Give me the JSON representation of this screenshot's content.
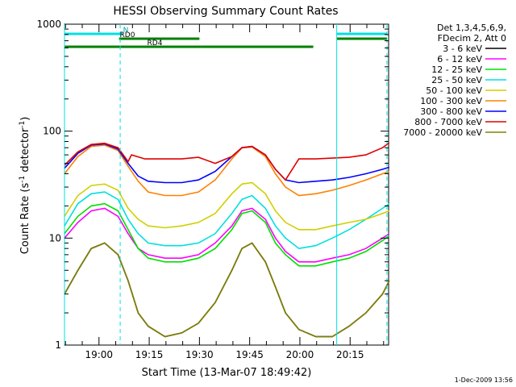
{
  "chart_data": {
    "type": "line",
    "title": "HESSI Observing Summary Count Rates",
    "xlabel": "Start Time (13-Mar-07 18:49:42)",
    "ylabel_main": "Count Rate (s",
    "ylabel_sup1": "-1",
    "ylabel_mid": " detector",
    "ylabel_sup2": "-1",
    "ylabel_end": ")",
    "y_scale": "log",
    "ylim": [
      1,
      1000
    ],
    "xlim": [
      "18:49:42",
      "20:26:30"
    ],
    "x_ticks": [
      "19:00",
      "19:15",
      "19:30",
      "19:45",
      "20:00",
      "20:15"
    ],
    "y_ticks": [
      "1",
      "10",
      "100",
      "1000"
    ],
    "legend": {
      "header": [
        "Det 1,3,4,5,6,9,",
        "FDecim 2, Att 0"
      ],
      "entries": [
        {
          "label": "3 - 6 keV",
          "color": "#000000"
        },
        {
          "label": "6 - 12 keV",
          "color": "#ff00ff"
        },
        {
          "label": "12 - 25 keV",
          "color": "#00e000"
        },
        {
          "label": "25 - 50 keV",
          "color": "#00e0e0"
        },
        {
          "label": "50 - 100 keV",
          "color": "#d0d000"
        },
        {
          "label": "100 - 300 keV",
          "color": "#ff8000"
        },
        {
          "label": "300 - 800 keV",
          "color": "#0000ff"
        },
        {
          "label": "800 - 7000 keV",
          "color": "#e00000"
        },
        {
          "label": "7000 - 20000 keV",
          "color": "#808000"
        }
      ]
    },
    "flags": [
      {
        "label": "N",
        "color": "#00e0e0",
        "intervals": [
          [
            "18:49:42",
            "19:07:00"
          ],
          [
            "20:11:00",
            "20:26:00"
          ]
        ]
      },
      {
        "label": "RD0",
        "color": "#008000",
        "intervals": [
          [
            "19:06:00",
            "19:30:00"
          ],
          [
            "20:11:00",
            "20:26:00"
          ]
        ]
      },
      {
        "label": "RD4",
        "color": "#008000",
        "intervals": [
          [
            "18:49:42",
            "19:30:30"
          ],
          [
            "19:30:30",
            "20:04:00"
          ]
        ]
      }
    ],
    "vertical_markers_dashed": [
      "19:06:20",
      "20:26:00"
    ],
    "vertical_markers_solid": [
      "18:49:42",
      "20:11:00"
    ],
    "series": [
      {
        "name": "3 - 6 keV",
        "color": "#000000",
        "points": [
          [
            0,
            3
          ],
          [
            4,
            5
          ],
          [
            8,
            8
          ],
          [
            12,
            9
          ],
          [
            16,
            7
          ],
          [
            19,
            4
          ],
          [
            22,
            2
          ],
          [
            25,
            1.5
          ],
          [
            30,
            1.2
          ],
          [
            35,
            1.3
          ],
          [
            40,
            1.6
          ],
          [
            45,
            2.5
          ],
          [
            50,
            5
          ],
          [
            53,
            8
          ],
          [
            56,
            9
          ],
          [
            60,
            6
          ],
          [
            63,
            3.5
          ],
          [
            66,
            2
          ],
          [
            70,
            1.4
          ],
          [
            75,
            1.2
          ],
          [
            80,
            1.2
          ],
          [
            85,
            1.5
          ],
          [
            90,
            2
          ],
          [
            95,
            3
          ],
          [
            97,
            4
          ]
        ]
      },
      {
        "name": "6 - 12 keV",
        "color": "#ff00ff",
        "points": [
          [
            0,
            10
          ],
          [
            4,
            14
          ],
          [
            8,
            18
          ],
          [
            12,
            19
          ],
          [
            16,
            16
          ],
          [
            19,
            11
          ],
          [
            22,
            8
          ],
          [
            25,
            7
          ],
          [
            30,
            6.5
          ],
          [
            35,
            6.5
          ],
          [
            40,
            7
          ],
          [
            45,
            9
          ],
          [
            50,
            13
          ],
          [
            53,
            18
          ],
          [
            56,
            19
          ],
          [
            60,
            15
          ],
          [
            63,
            10
          ],
          [
            66,
            7.5
          ],
          [
            70,
            6
          ],
          [
            75,
            6
          ],
          [
            80,
            6.5
          ],
          [
            85,
            7
          ],
          [
            90,
            8
          ],
          [
            95,
            10
          ],
          [
            97,
            11
          ]
        ]
      },
      {
        "name": "12 - 25 keV",
        "color": "#00e000",
        "points": [
          [
            0,
            11
          ],
          [
            4,
            16
          ],
          [
            8,
            20
          ],
          [
            12,
            21
          ],
          [
            16,
            18
          ],
          [
            19,
            12
          ],
          [
            22,
            8
          ],
          [
            25,
            6.5
          ],
          [
            30,
            6
          ],
          [
            35,
            6
          ],
          [
            40,
            6.5
          ],
          [
            45,
            8
          ],
          [
            50,
            12
          ],
          [
            53,
            17
          ],
          [
            56,
            18
          ],
          [
            60,
            14
          ],
          [
            63,
            9
          ],
          [
            66,
            7
          ],
          [
            70,
            5.5
          ],
          [
            75,
            5.5
          ],
          [
            80,
            6
          ],
          [
            85,
            6.5
          ],
          [
            90,
            7.5
          ],
          [
            95,
            9.5
          ],
          [
            97,
            10.5
          ]
        ]
      },
      {
        "name": "25 - 50 keV",
        "color": "#00e0e0",
        "points": [
          [
            0,
            13
          ],
          [
            4,
            21
          ],
          [
            8,
            26
          ],
          [
            12,
            27
          ],
          [
            16,
            23
          ],
          [
            19,
            15
          ],
          [
            22,
            11
          ],
          [
            25,
            9
          ],
          [
            30,
            8.5
          ],
          [
            35,
            8.5
          ],
          [
            40,
            9
          ],
          [
            45,
            11
          ],
          [
            50,
            17
          ],
          [
            53,
            23
          ],
          [
            56,
            25
          ],
          [
            60,
            19
          ],
          [
            63,
            13
          ],
          [
            66,
            10
          ],
          [
            70,
            8
          ],
          [
            75,
            8.5
          ],
          [
            80,
            10
          ],
          [
            85,
            12
          ],
          [
            90,
            15
          ],
          [
            95,
            19
          ],
          [
            97,
            21
          ]
        ]
      },
      {
        "name": "50 - 100 keV",
        "color": "#d0d000",
        "points": [
          [
            0,
            16
          ],
          [
            4,
            25
          ],
          [
            8,
            31
          ],
          [
            12,
            32
          ],
          [
            16,
            28
          ],
          [
            19,
            19
          ],
          [
            22,
            15
          ],
          [
            25,
            13
          ],
          [
            30,
            12.5
          ],
          [
            35,
            13
          ],
          [
            40,
            14
          ],
          [
            45,
            17
          ],
          [
            50,
            26
          ],
          [
            53,
            32
          ],
          [
            56,
            33
          ],
          [
            60,
            26
          ],
          [
            63,
            18
          ],
          [
            66,
            14
          ],
          [
            70,
            12
          ],
          [
            75,
            12
          ],
          [
            80,
            13
          ],
          [
            85,
            14
          ],
          [
            90,
            15
          ],
          [
            95,
            17
          ],
          [
            97,
            18
          ]
        ]
      },
      {
        "name": "100 - 300 keV",
        "color": "#ff8000",
        "points": [
          [
            0,
            40
          ],
          [
            4,
            58
          ],
          [
            8,
            72
          ],
          [
            12,
            74
          ],
          [
            16,
            66
          ],
          [
            19,
            47
          ],
          [
            22,
            34
          ],
          [
            25,
            27
          ],
          [
            30,
            25
          ],
          [
            35,
            25
          ],
          [
            40,
            27
          ],
          [
            45,
            35
          ],
          [
            50,
            55
          ],
          [
            53,
            70
          ],
          [
            56,
            71
          ],
          [
            60,
            58
          ],
          [
            63,
            40
          ],
          [
            66,
            30
          ],
          [
            70,
            25
          ],
          [
            75,
            26
          ],
          [
            80,
            28
          ],
          [
            85,
            31
          ],
          [
            90,
            35
          ],
          [
            95,
            40
          ],
          [
            97,
            42
          ]
        ]
      },
      {
        "name": "300 - 800 keV",
        "color": "#0000ff",
        "points": [
          [
            0,
            45
          ],
          [
            4,
            62
          ],
          [
            8,
            74
          ],
          [
            12,
            76
          ],
          [
            16,
            68
          ],
          [
            19,
            50
          ],
          [
            22,
            38
          ],
          [
            25,
            34
          ],
          [
            30,
            33
          ],
          [
            35,
            33
          ],
          [
            40,
            35
          ],
          [
            45,
            42
          ],
          [
            50,
            58
          ],
          [
            53,
            70
          ],
          [
            56,
            72
          ],
          [
            60,
            60
          ],
          [
            63,
            44
          ],
          [
            66,
            35
          ],
          [
            70,
            33
          ],
          [
            75,
            34
          ],
          [
            80,
            35
          ],
          [
            85,
            37
          ],
          [
            90,
            40
          ],
          [
            95,
            44
          ],
          [
            97,
            46
          ]
        ]
      },
      {
        "name": "800 - 7000 keV",
        "color": "#e00000",
        "points": [
          [
            0,
            48
          ],
          [
            4,
            64
          ],
          [
            8,
            75
          ],
          [
            12,
            77
          ],
          [
            16,
            70
          ],
          [
            19,
            52
          ],
          [
            20,
            60
          ],
          [
            24,
            55
          ],
          [
            30,
            55
          ],
          [
            35,
            55
          ],
          [
            40,
            57
          ],
          [
            45,
            50
          ],
          [
            50,
            58
          ],
          [
            53,
            70
          ],
          [
            56,
            72
          ],
          [
            60,
            60
          ],
          [
            63,
            44
          ],
          [
            66,
            35
          ],
          [
            70,
            55
          ],
          [
            75,
            55
          ],
          [
            80,
            56
          ],
          [
            85,
            57
          ],
          [
            90,
            60
          ],
          [
            95,
            70
          ],
          [
            97,
            78
          ]
        ]
      },
      {
        "name": "7000 - 20000 keV",
        "color": "#808000",
        "points": [
          [
            0,
            3
          ],
          [
            4,
            5
          ],
          [
            8,
            8
          ],
          [
            12,
            9
          ],
          [
            16,
            7
          ],
          [
            19,
            4
          ],
          [
            22,
            2
          ],
          [
            25,
            1.5
          ],
          [
            30,
            1.2
          ],
          [
            35,
            1.3
          ],
          [
            40,
            1.6
          ],
          [
            45,
            2.5
          ],
          [
            50,
            5
          ],
          [
            53,
            8
          ],
          [
            56,
            9
          ],
          [
            60,
            6
          ],
          [
            63,
            3.5
          ],
          [
            66,
            2
          ],
          [
            70,
            1.4
          ],
          [
            75,
            1.2
          ],
          [
            80,
            1.2
          ],
          [
            85,
            1.5
          ],
          [
            90,
            2
          ],
          [
            95,
            3
          ],
          [
            97,
            4
          ]
        ]
      }
    ]
  },
  "footer_timestamp": "1-Dec-2009 13:56"
}
